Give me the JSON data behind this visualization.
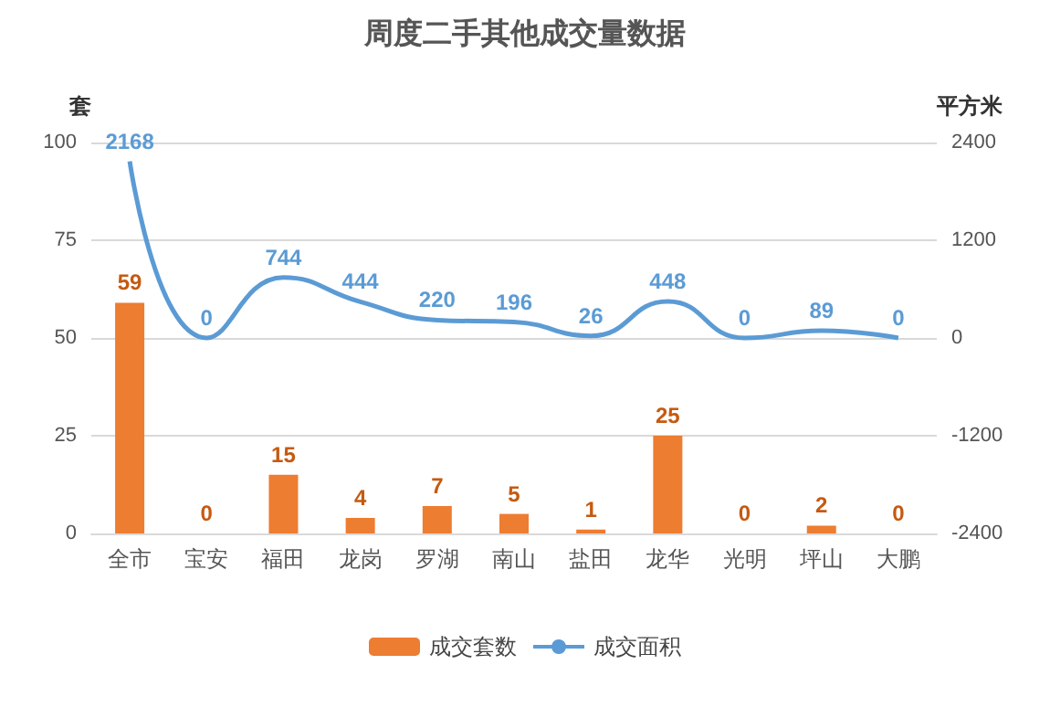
{
  "chart_data": {
    "type": "bar",
    "title": "周度二手其他成交量数据",
    "ylabel": "套",
    "y2label": "平方米",
    "categories": [
      "全市",
      "宝安",
      "福田",
      "龙岗",
      "罗湖",
      "南山",
      "盐田",
      "龙华",
      "光明",
      "坪山",
      "大鹏"
    ],
    "series": [
      {
        "name": "成交套数",
        "color": "#ed7d31",
        "values": [
          59,
          0,
          15,
          4,
          7,
          5,
          1,
          25,
          0,
          2,
          0
        ]
      },
      {
        "name": "成交面积",
        "type": "line",
        "axis": "y2",
        "color": "#5b9bd5",
        "values": [
          2168,
          0,
          744,
          444,
          220,
          196,
          26,
          448,
          0,
          89,
          0
        ]
      }
    ],
    "ylim": [
      0,
      100
    ],
    "yticks": [
      0,
      25,
      50,
      75,
      100
    ],
    "y2lim": [
      -2400,
      2400
    ],
    "y2ticks": [
      -2400,
      -1200,
      0,
      1200,
      2400
    ],
    "data_labels": true,
    "grid": "y",
    "legend": "bottom",
    "marker": "none",
    "line_style": "solid"
  }
}
